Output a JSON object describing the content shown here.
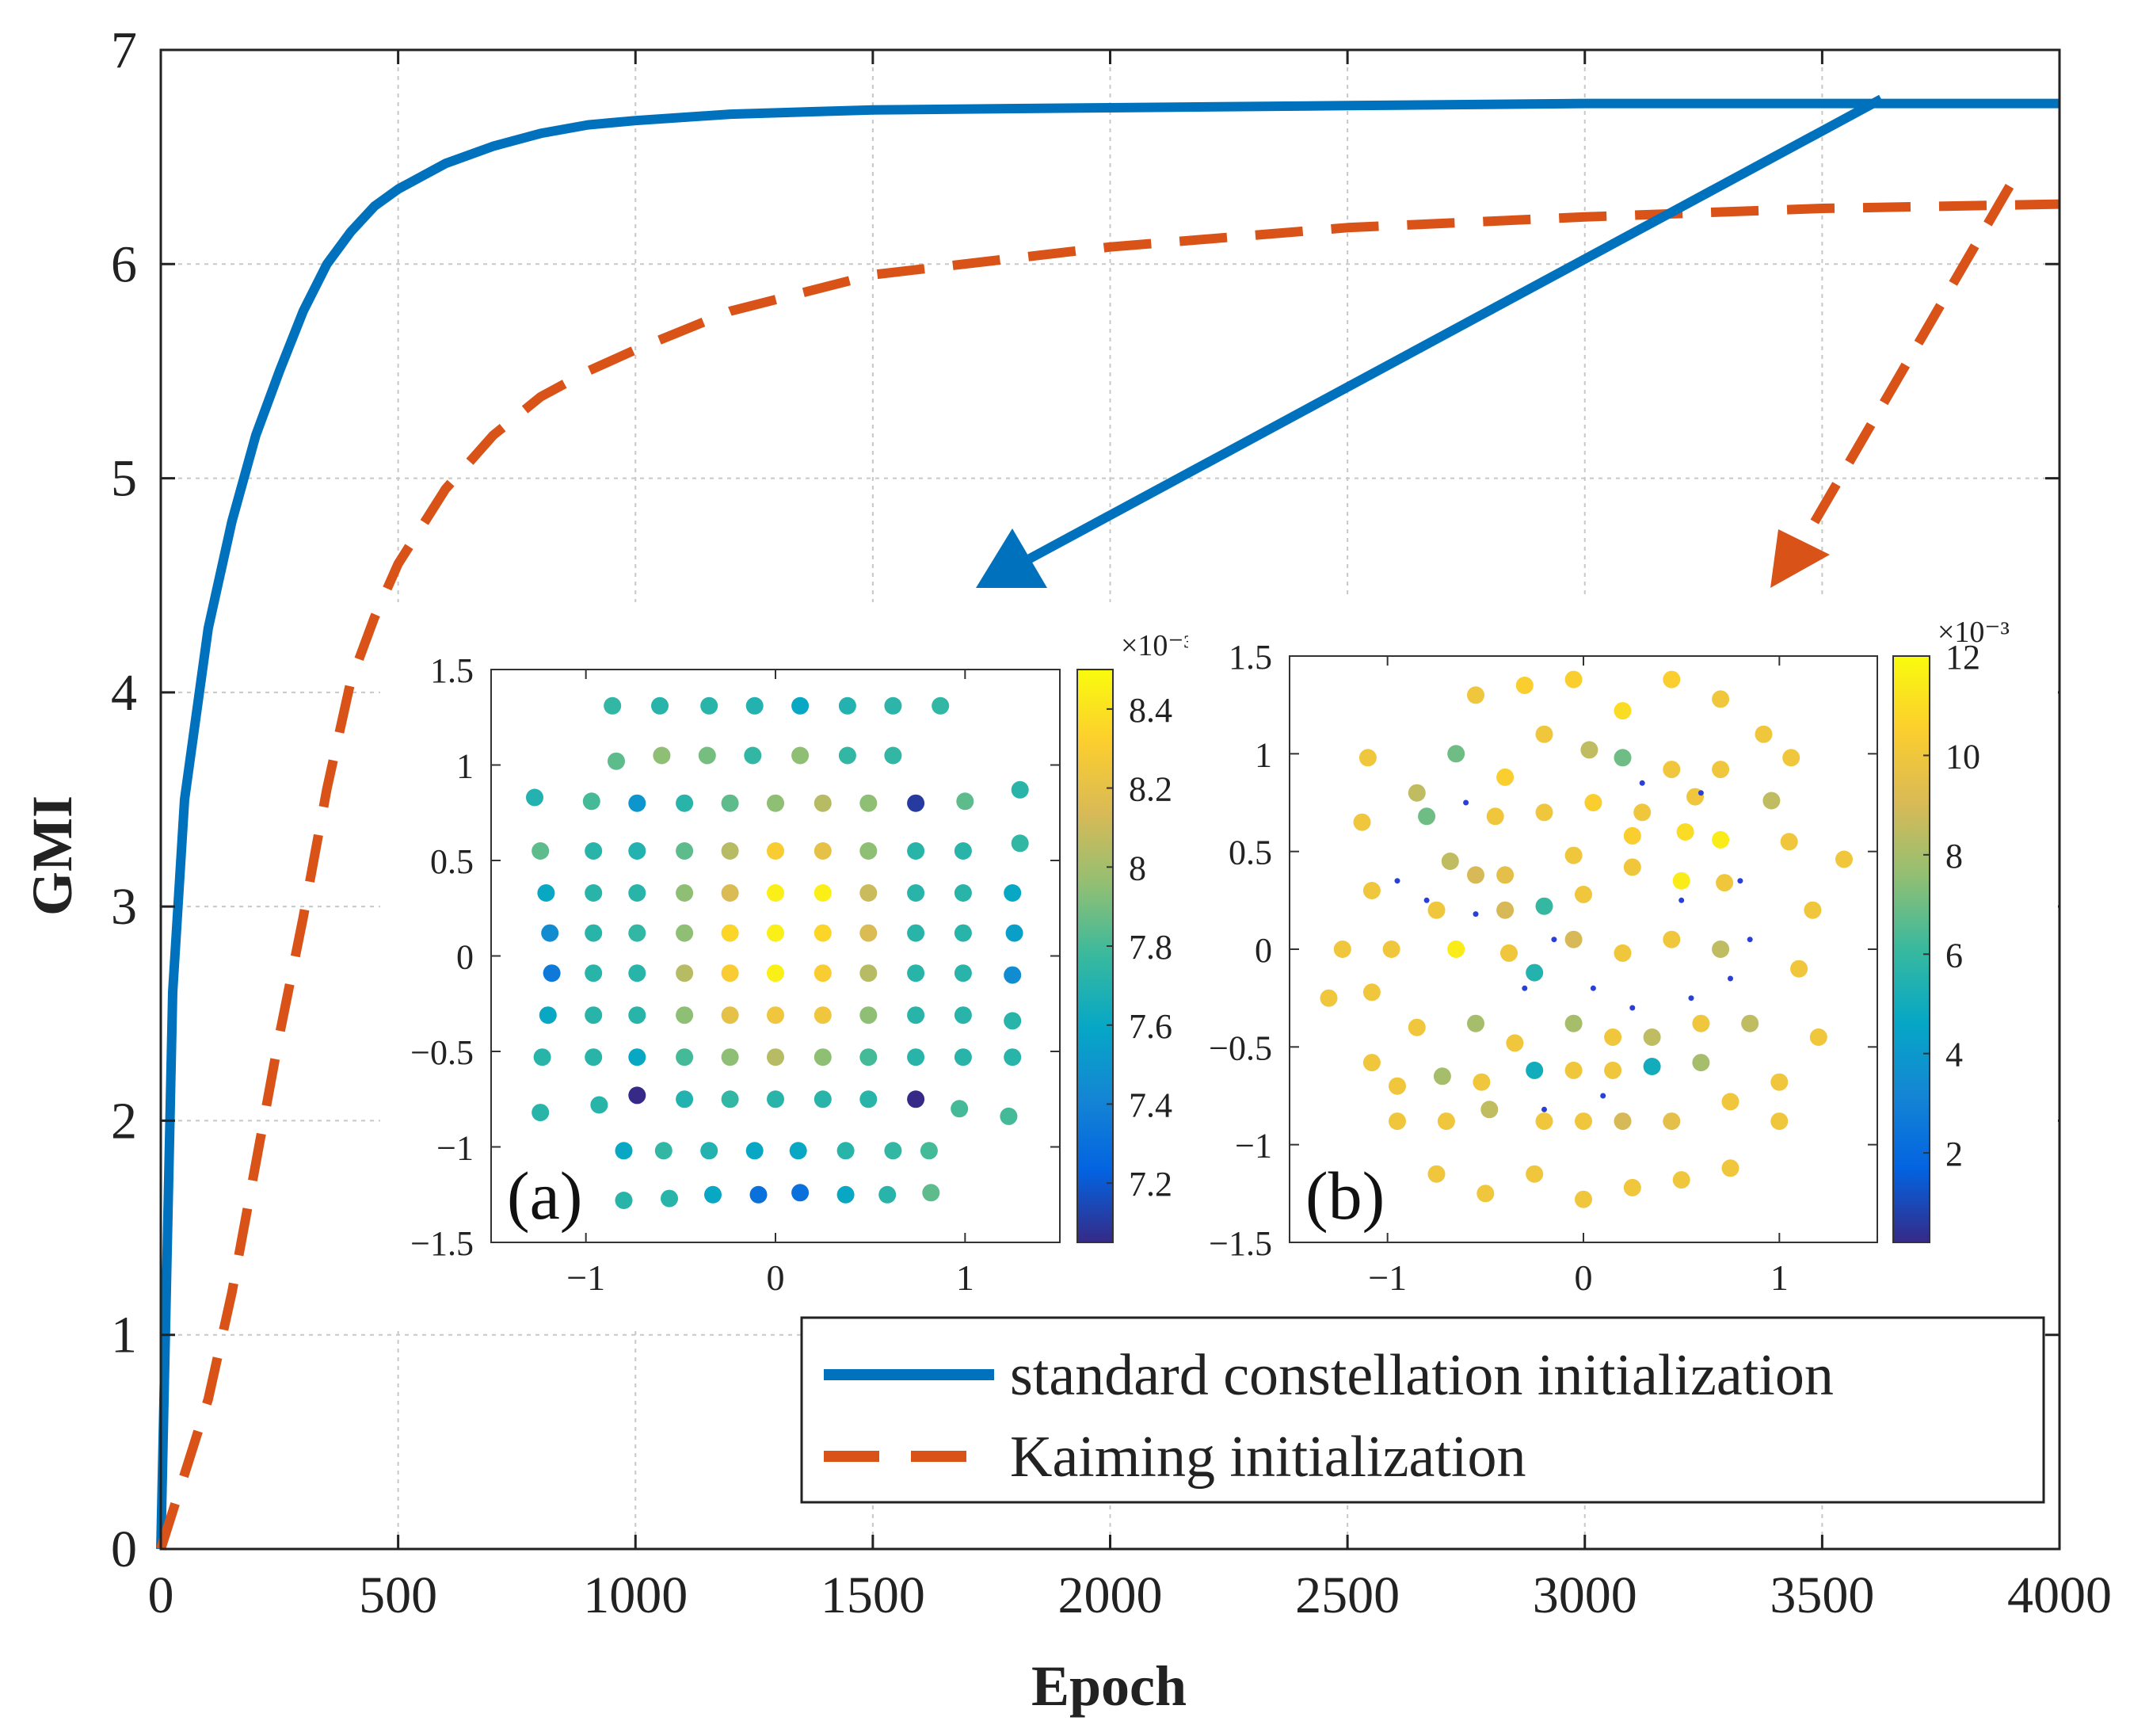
{
  "chart_data": {
    "main": {
      "type": "line",
      "xlabel": "Epoch",
      "ylabel": "GMI",
      "xlim": [
        0,
        4000
      ],
      "ylim": [
        0,
        7
      ],
      "xticks": [
        0,
        500,
        1000,
        1500,
        2000,
        2500,
        3000,
        3500,
        4000
      ],
      "yticks": [
        0,
        1,
        2,
        3,
        4,
        5,
        6,
        7
      ],
      "xtick_labels": [
        "0",
        "500",
        "1000",
        "1500",
        "2000",
        "2500",
        "3000",
        "3500",
        "4000"
      ],
      "ytick_labels": [
        "0",
        "1",
        "2",
        "3",
        "4",
        "5",
        "6",
        "7"
      ],
      "grid": true,
      "legend_position": "bottom-right",
      "series": [
        {
          "name": "standard constellation initialization",
          "style": "solid",
          "color": "#0072BD",
          "x": [
            0,
            25,
            50,
            100,
            150,
            200,
            250,
            300,
            350,
            400,
            450,
            500,
            600,
            700,
            800,
            900,
            1000,
            1200,
            1500,
            2000,
            2500,
            3000,
            3500,
            4000
          ],
          "y": [
            0,
            2.6,
            3.5,
            4.3,
            4.8,
            5.2,
            5.5,
            5.78,
            6.0,
            6.15,
            6.27,
            6.35,
            6.47,
            6.55,
            6.61,
            6.65,
            6.67,
            6.7,
            6.72,
            6.73,
            6.74,
            6.75,
            6.75,
            6.75
          ]
        },
        {
          "name": "Kaiming initialization",
          "style": "dashed",
          "color": "#D95319",
          "x": [
            0,
            50,
            100,
            150,
            200,
            250,
            300,
            350,
            400,
            450,
            500,
            600,
            700,
            800,
            900,
            1000,
            1200,
            1500,
            2000,
            2500,
            3000,
            3500,
            4000
          ],
          "y": [
            0,
            0.35,
            0.7,
            1.2,
            1.8,
            2.4,
            2.95,
            3.55,
            4.05,
            4.35,
            4.6,
            4.95,
            5.2,
            5.38,
            5.5,
            5.6,
            5.78,
            5.95,
            6.08,
            6.17,
            6.22,
            6.26,
            6.28
          ]
        }
      ]
    },
    "inset_a": {
      "type": "scatter",
      "label": "(a)",
      "xlim": [
        -1.5,
        1.5
      ],
      "ylim": [
        -1.5,
        1.5
      ],
      "xticks": [
        -1,
        0,
        1
      ],
      "xtick_labels": [
        "−1",
        "0",
        "1"
      ],
      "yticks": [
        1.5,
        1,
        0.5,
        0,
        -0.5,
        -1,
        -1.5
      ],
      "ytick_labels": [
        "1.5",
        "1",
        "0.5",
        "0",
        "−0.5",
        "−1",
        "−1.5"
      ],
      "colorbar": {
        "range": [
          7.05,
          8.5
        ],
        "ticks": [
          7.2,
          7.4,
          7.6,
          7.8,
          8,
          8.2,
          8.4
        ],
        "tick_labels": [
          "7.2",
          "7.4",
          "7.6",
          "7.8",
          "8",
          "8.2",
          "8.4"
        ],
        "exponent": "×10⁻³"
      },
      "points": [
        [
          -0.86,
          1.31,
          7.75
        ],
        [
          -0.61,
          1.31,
          7.72
        ],
        [
          -0.35,
          1.31,
          7.72
        ],
        [
          -0.11,
          1.31,
          7.7
        ],
        [
          0.13,
          1.31,
          7.6
        ],
        [
          0.38,
          1.31,
          7.7
        ],
        [
          0.62,
          1.31,
          7.73
        ],
        [
          0.87,
          1.31,
          7.75
        ],
        [
          -0.84,
          1.02,
          7.85
        ],
        [
          -0.6,
          1.05,
          7.95
        ],
        [
          -0.36,
          1.05,
          7.9
        ],
        [
          -0.12,
          1.05,
          7.75
        ],
        [
          0.13,
          1.05,
          7.95
        ],
        [
          0.38,
          1.05,
          7.75
        ],
        [
          0.62,
          1.05,
          7.75
        ],
        [
          -1.27,
          0.83,
          7.7
        ],
        [
          -0.97,
          0.81,
          7.8
        ],
        [
          -0.73,
          0.8,
          7.5
        ],
        [
          -0.48,
          0.8,
          7.72
        ],
        [
          -0.24,
          0.8,
          7.85
        ],
        [
          0.0,
          0.8,
          7.95
        ],
        [
          0.25,
          0.8,
          8.05
        ],
        [
          0.49,
          0.8,
          7.95
        ],
        [
          0.74,
          0.8,
          7.1
        ],
        [
          1.0,
          0.81,
          7.85
        ],
        [
          1.29,
          0.87,
          7.72
        ],
        [
          -1.24,
          0.55,
          7.85
        ],
        [
          -0.96,
          0.55,
          7.72
        ],
        [
          -0.73,
          0.55,
          7.7
        ],
        [
          -0.48,
          0.55,
          7.85
        ],
        [
          -0.24,
          0.55,
          8.05
        ],
        [
          0.0,
          0.55,
          8.3
        ],
        [
          0.25,
          0.55,
          8.2
        ],
        [
          0.49,
          0.55,
          7.95
        ],
        [
          0.74,
          0.55,
          7.72
        ],
        [
          0.99,
          0.55,
          7.72
        ],
        [
          1.29,
          0.59,
          7.75
        ],
        [
          -1.21,
          0.33,
          7.6
        ],
        [
          -0.96,
          0.33,
          7.72
        ],
        [
          -0.73,
          0.33,
          7.72
        ],
        [
          -0.48,
          0.33,
          7.95
        ],
        [
          -0.24,
          0.33,
          8.15
        ],
        [
          0.0,
          0.33,
          8.45
        ],
        [
          0.25,
          0.33,
          8.45
        ],
        [
          0.49,
          0.33,
          8.1
        ],
        [
          0.74,
          0.33,
          7.72
        ],
        [
          0.99,
          0.33,
          7.72
        ],
        [
          1.25,
          0.33,
          7.6
        ],
        [
          -1.19,
          0.12,
          7.45
        ],
        [
          -0.96,
          0.12,
          7.72
        ],
        [
          -0.73,
          0.12,
          7.75
        ],
        [
          -0.48,
          0.12,
          7.95
        ],
        [
          -0.24,
          0.12,
          8.35
        ],
        [
          0.0,
          0.12,
          8.45
        ],
        [
          0.25,
          0.12,
          8.35
        ],
        [
          0.49,
          0.12,
          8.15
        ],
        [
          0.74,
          0.12,
          7.72
        ],
        [
          0.99,
          0.12,
          7.72
        ],
        [
          1.26,
          0.12,
          7.55
        ],
        [
          -1.18,
          -0.09,
          7.35
        ],
        [
          -0.96,
          -0.09,
          7.72
        ],
        [
          -0.73,
          -0.09,
          7.72
        ],
        [
          -0.48,
          -0.09,
          8.05
        ],
        [
          -0.24,
          -0.09,
          8.3
        ],
        [
          0.0,
          -0.09,
          8.45
        ],
        [
          0.25,
          -0.09,
          8.3
        ],
        [
          0.49,
          -0.09,
          8.05
        ],
        [
          0.74,
          -0.09,
          7.72
        ],
        [
          0.99,
          -0.09,
          7.72
        ],
        [
          1.25,
          -0.1,
          7.45
        ],
        [
          -1.2,
          -0.31,
          7.6
        ],
        [
          -0.96,
          -0.31,
          7.72
        ],
        [
          -0.73,
          -0.31,
          7.72
        ],
        [
          -0.48,
          -0.31,
          7.95
        ],
        [
          -0.24,
          -0.31,
          8.2
        ],
        [
          0.0,
          -0.31,
          8.25
        ],
        [
          0.25,
          -0.31,
          8.25
        ],
        [
          0.49,
          -0.31,
          7.95
        ],
        [
          0.74,
          -0.31,
          7.72
        ],
        [
          0.99,
          -0.31,
          7.72
        ],
        [
          1.25,
          -0.34,
          7.72
        ],
        [
          -1.23,
          -0.53,
          7.72
        ],
        [
          -0.96,
          -0.53,
          7.72
        ],
        [
          -0.73,
          -0.53,
          7.6
        ],
        [
          -0.48,
          -0.53,
          7.8
        ],
        [
          -0.24,
          -0.53,
          7.95
        ],
        [
          0.0,
          -0.53,
          8.05
        ],
        [
          0.25,
          -0.53,
          7.95
        ],
        [
          0.49,
          -0.53,
          7.8
        ],
        [
          0.74,
          -0.53,
          7.72
        ],
        [
          0.99,
          -0.53,
          7.72
        ],
        [
          1.25,
          -0.53,
          7.72
        ],
        [
          -1.24,
          -0.82,
          7.72
        ],
        [
          -0.93,
          -0.78,
          7.72
        ],
        [
          -0.73,
          -0.73,
          7.05
        ],
        [
          -0.48,
          -0.75,
          7.7
        ],
        [
          -0.24,
          -0.75,
          7.75
        ],
        [
          0.0,
          -0.75,
          7.72
        ],
        [
          0.25,
          -0.75,
          7.72
        ],
        [
          0.49,
          -0.75,
          7.72
        ],
        [
          0.74,
          -0.75,
          7.05
        ],
        [
          0.97,
          -0.8,
          7.8
        ],
        [
          1.23,
          -0.84,
          7.8
        ],
        [
          -0.8,
          -1.02,
          7.6
        ],
        [
          -0.59,
          -1.02,
          7.75
        ],
        [
          -0.35,
          -1.02,
          7.7
        ],
        [
          -0.11,
          -1.02,
          7.6
        ],
        [
          0.12,
          -1.02,
          7.6
        ],
        [
          0.37,
          -1.02,
          7.72
        ],
        [
          0.62,
          -1.02,
          7.75
        ],
        [
          0.81,
          -1.02,
          7.8
        ],
        [
          -0.8,
          -1.28,
          7.72
        ],
        [
          -0.56,
          -1.27,
          7.72
        ],
        [
          -0.33,
          -1.25,
          7.6
        ],
        [
          -0.09,
          -1.25,
          7.3
        ],
        [
          0.13,
          -1.24,
          7.3
        ],
        [
          0.37,
          -1.25,
          7.6
        ],
        [
          0.59,
          -1.25,
          7.72
        ],
        [
          0.82,
          -1.24,
          7.85
        ]
      ]
    },
    "inset_b": {
      "type": "scatter",
      "label": "(b)",
      "xlim": [
        -1.5,
        1.5
      ],
      "ylim": [
        -1.5,
        1.5
      ],
      "xticks": [
        -1,
        0,
        1
      ],
      "xtick_labels": [
        "−1",
        "0",
        "1"
      ],
      "yticks": [
        1.5,
        1,
        0.5,
        0,
        -0.5,
        -1,
        -1.5
      ],
      "ytick_labels": [
        "1.5",
        "1",
        "0.5",
        "0",
        "−0.5",
        "−1",
        "−1.5"
      ],
      "colorbar": {
        "range": [
          0.2,
          12
        ],
        "ticks": [
          2,
          4,
          6,
          8,
          10,
          12
        ],
        "tick_labels": [
          "2",
          "4",
          "6",
          "8",
          "10",
          "12"
        ],
        "exponent": "×10⁻³"
      },
      "points": [
        [
          -0.55,
          1.3,
          10
        ],
        [
          -0.3,
          1.35,
          10.5
        ],
        [
          -0.05,
          1.38,
          10.5
        ],
        [
          0.2,
          1.22,
          11
        ],
        [
          0.45,
          1.38,
          10.5
        ],
        [
          0.7,
          1.28,
          10
        ],
        [
          0.92,
          1.1,
          10
        ],
        [
          -1.1,
          0.98,
          10
        ],
        [
          -0.85,
          0.8,
          8.5
        ],
        [
          -0.65,
          1.0,
          7
        ],
        [
          -0.4,
          0.88,
          10.5
        ],
        [
          -0.2,
          1.1,
          10
        ],
        [
          0.03,
          1.02,
          8.5
        ],
        [
          0.2,
          0.98,
          7
        ],
        [
          0.45,
          0.92,
          10
        ],
        [
          0.7,
          0.92,
          10
        ],
        [
          1.06,
          0.98,
          10
        ],
        [
          -1.13,
          0.65,
          10
        ],
        [
          -0.8,
          0.68,
          7
        ],
        [
          -0.45,
          0.68,
          10
        ],
        [
          -0.2,
          0.7,
          10
        ],
        [
          0.05,
          0.75,
          10.5
        ],
        [
          0.3,
          0.7,
          10
        ],
        [
          0.57,
          0.78,
          10
        ],
        [
          0.96,
          0.76,
          8.5
        ],
        [
          -1.08,
          0.3,
          10
        ],
        [
          -0.68,
          0.45,
          8.5
        ],
        [
          -0.55,
          0.38,
          9
        ],
        [
          -0.4,
          0.38,
          9.5
        ],
        [
          -0.05,
          0.48,
          10
        ],
        [
          0.25,
          0.58,
          10.5
        ],
        [
          0.52,
          0.6,
          11
        ],
        [
          0.7,
          0.56,
          11.5
        ],
        [
          1.05,
          0.55,
          10
        ],
        [
          1.33,
          0.46,
          10
        ],
        [
          -0.75,
          0.2,
          10
        ],
        [
          -0.4,
          0.2,
          9
        ],
        [
          -0.2,
          0.22,
          6
        ],
        [
          0.0,
          0.28,
          10
        ],
        [
          0.25,
          0.42,
          10
        ],
        [
          0.5,
          0.35,
          11.5
        ],
        [
          0.72,
          0.34,
          10
        ],
        [
          1.17,
          0.2,
          10
        ],
        [
          -1.23,
          0.0,
          10
        ],
        [
          -0.98,
          0.0,
          10
        ],
        [
          -0.65,
          0.0,
          11.5
        ],
        [
          -0.38,
          -0.02,
          10
        ],
        [
          -0.25,
          -0.12,
          5.5
        ],
        [
          -0.05,
          0.05,
          9
        ],
        [
          0.2,
          -0.02,
          10
        ],
        [
          0.45,
          0.05,
          10
        ],
        [
          0.7,
          0.0,
          8.5
        ],
        [
          1.1,
          -0.1,
          10
        ],
        [
          -1.3,
          -0.25,
          10
        ],
        [
          -1.08,
          -0.22,
          10
        ],
        [
          -0.85,
          -0.4,
          10
        ],
        [
          -0.55,
          -0.38,
          8
        ],
        [
          -0.35,
          -0.48,
          10
        ],
        [
          -0.05,
          -0.38,
          8
        ],
        [
          0.15,
          -0.45,
          10
        ],
        [
          0.35,
          -0.45,
          8.5
        ],
        [
          0.6,
          -0.38,
          10
        ],
        [
          0.85,
          -0.38,
          8.5
        ],
        [
          1.2,
          -0.45,
          10
        ],
        [
          -1.08,
          -0.58,
          10
        ],
        [
          -0.95,
          -0.7,
          10
        ],
        [
          -0.72,
          -0.65,
          8
        ],
        [
          -0.52,
          -0.68,
          10
        ],
        [
          -0.25,
          -0.62,
          5
        ],
        [
          -0.05,
          -0.62,
          10
        ],
        [
          0.15,
          -0.62,
          10
        ],
        [
          0.35,
          -0.6,
          5
        ],
        [
          0.6,
          -0.58,
          8
        ],
        [
          1.0,
          -0.68,
          10
        ],
        [
          -0.7,
          -0.88,
          10
        ],
        [
          -0.48,
          -0.82,
          8.5
        ],
        [
          -0.2,
          -0.88,
          10
        ],
        [
          0.0,
          -0.88,
          10
        ],
        [
          0.2,
          -0.88,
          9
        ],
        [
          0.45,
          -0.88,
          9.5
        ],
        [
          0.75,
          -0.78,
          10
        ],
        [
          -0.75,
          -1.15,
          10
        ],
        [
          -0.5,
          -1.25,
          10
        ],
        [
          -0.25,
          -1.15,
          10
        ],
        [
          0.0,
          -1.28,
          10
        ],
        [
          0.25,
          -1.22,
          10
        ],
        [
          0.5,
          -1.18,
          10
        ],
        [
          0.75,
          -1.12,
          10
        ],
        [
          -0.95,
          -0.88,
          10
        ],
        [
          1.0,
          -0.88,
          10
        ]
      ],
      "small_points": [
        [
          -0.95,
          0.35
        ],
        [
          -0.8,
          0.25
        ],
        [
          -0.55,
          0.18
        ],
        [
          -0.3,
          -0.2
        ],
        [
          -0.15,
          0.05
        ],
        [
          0.05,
          -0.2
        ],
        [
          0.25,
          -0.3
        ],
        [
          0.55,
          -0.25
        ],
        [
          0.75,
          -0.15
        ],
        [
          0.85,
          0.05
        ],
        [
          0.8,
          0.35
        ],
        [
          0.6,
          0.8
        ],
        [
          0.3,
          0.85
        ],
        [
          -0.6,
          0.75
        ],
        [
          0.1,
          -0.75
        ],
        [
          -0.2,
          -0.82
        ],
        [
          0.5,
          0.25
        ]
      ]
    },
    "colors": {
      "blue": "#0072BD",
      "orange": "#D95319",
      "grid": "#c8c8c8"
    }
  }
}
